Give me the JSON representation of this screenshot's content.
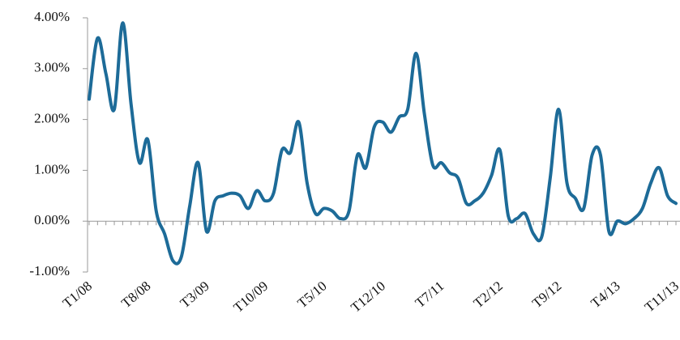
{
  "chart_data": {
    "type": "line",
    "categories": [
      "T1/08",
      null,
      null,
      null,
      null,
      null,
      null,
      "T8/08",
      null,
      null,
      null,
      null,
      null,
      null,
      "T3/09",
      null,
      null,
      null,
      null,
      null,
      null,
      "T10/09",
      null,
      null,
      null,
      null,
      null,
      null,
      "T5/10",
      null,
      null,
      null,
      null,
      null,
      null,
      "T12/10",
      null,
      null,
      null,
      null,
      null,
      null,
      "T7/11",
      null,
      null,
      null,
      null,
      null,
      null,
      "T2/12",
      null,
      null,
      null,
      null,
      null,
      null,
      "T9/12",
      null,
      null,
      null,
      null,
      null,
      null,
      "T4/13",
      null,
      null,
      null,
      null,
      null,
      null,
      "T11/13"
    ],
    "series": [
      {
        "color": "#1d6b98",
        "values": [
          2.4,
          3.6,
          2.9,
          2.2,
          3.9,
          2.3,
          1.15,
          1.6,
          0.2,
          -0.25,
          -0.78,
          -0.7,
          0.3,
          1.15,
          -0.2,
          0.4,
          0.5,
          0.55,
          0.5,
          0.25,
          0.6,
          0.4,
          0.55,
          1.4,
          1.35,
          1.95,
          0.75,
          0.15,
          0.25,
          0.2,
          0.05,
          0.2,
          1.3,
          1.05,
          1.85,
          1.95,
          1.75,
          2.05,
          2.2,
          3.3,
          2.1,
          1.1,
          1.15,
          0.95,
          0.85,
          0.35,
          0.4,
          0.55,
          0.9,
          1.4,
          0.1,
          0.05,
          0.15,
          -0.25,
          -0.3,
          0.85,
          2.2,
          0.75,
          0.45,
          0.25,
          1.3,
          1.3,
          -0.2,
          0.0,
          -0.05,
          0.05,
          0.25,
          0.75,
          1.05,
          0.5,
          0.35
        ]
      }
    ],
    "ylim": [
      -1,
      4
    ],
    "yticks": [
      {
        "value": -1,
        "label": "-1.00%"
      },
      {
        "value": 0,
        "label": "0.00%"
      },
      {
        "value": 1,
        "label": "1.00%"
      },
      {
        "value": 2,
        "label": "2.00%"
      },
      {
        "value": 3,
        "label": "3.00%"
      },
      {
        "value": 4,
        "label": "4.00%"
      }
    ]
  }
}
